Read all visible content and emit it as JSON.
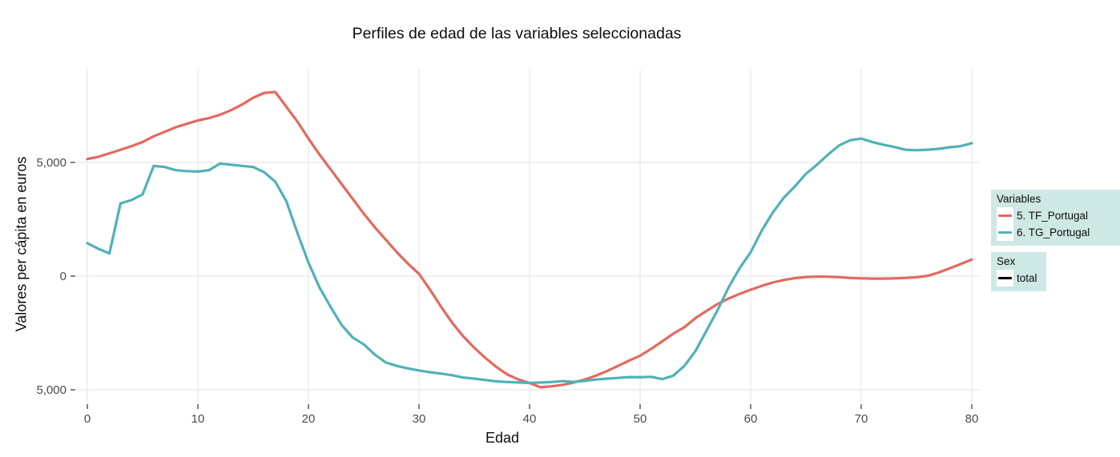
{
  "chart_data": {
    "type": "line",
    "title": "Perfiles de edad de las variables seleccionadas",
    "xlabel": "Edad",
    "ylabel": "Valores per cápita en euros",
    "xlim": [
      0,
      80
    ],
    "ylim": [
      -5560,
      9050
    ],
    "grid": true,
    "legend_position": "right",
    "x_ticks": [
      0,
      10,
      20,
      30,
      40,
      50,
      60,
      70,
      80
    ],
    "y_ticks": [
      {
        "value": 5000,
        "label": "5,000"
      },
      {
        "value": 0,
        "label": "0"
      },
      {
        "value": -5000,
        "label": "5,000"
      }
    ],
    "x": [
      0,
      1,
      2,
      3,
      4,
      5,
      6,
      7,
      8,
      9,
      10,
      11,
      12,
      13,
      14,
      15,
      16,
      17,
      18,
      19,
      20,
      21,
      22,
      23,
      24,
      25,
      26,
      27,
      28,
      29,
      30,
      31,
      32,
      33,
      34,
      35,
      36,
      37,
      38,
      39,
      40,
      41,
      42,
      43,
      44,
      45,
      46,
      47,
      48,
      49,
      50,
      51,
      52,
      53,
      54,
      55,
      56,
      57,
      58,
      59,
      60,
      61,
      62,
      63,
      64,
      65,
      66,
      67,
      68,
      69,
      70,
      71,
      72,
      73,
      74,
      75,
      76,
      77,
      78,
      79,
      80
    ],
    "series": [
      {
        "name": "5. TF_Portugal",
        "color": "#e5685e",
        "values": [
          5150,
          5250,
          5400,
          5560,
          5720,
          5900,
          6150,
          6350,
          6550,
          6700,
          6850,
          6950,
          7100,
          7300,
          7550,
          7850,
          8060,
          8100,
          7450,
          6800,
          6050,
          5350,
          4700,
          4050,
          3400,
          2750,
          2150,
          1600,
          1050,
          550,
          100,
          -600,
          -1350,
          -2050,
          -2650,
          -3150,
          -3600,
          -4000,
          -4330,
          -4550,
          -4700,
          -4890,
          -4850,
          -4780,
          -4680,
          -4550,
          -4380,
          -4180,
          -3950,
          -3720,
          -3500,
          -3200,
          -2870,
          -2530,
          -2250,
          -1850,
          -1530,
          -1230,
          -985,
          -780,
          -600,
          -430,
          -280,
          -170,
          -90,
          -40,
          -20,
          -25,
          -45,
          -80,
          -100,
          -110,
          -110,
          -100,
          -80,
          -50,
          10,
          160,
          340,
          530,
          730
        ]
      },
      {
        "name": "6. TG_Portugal",
        "color": "#4fb2b8",
        "values": [
          1450,
          1200,
          1000,
          3200,
          3350,
          3600,
          4850,
          4800,
          4660,
          4620,
          4600,
          4660,
          4950,
          4900,
          4850,
          4800,
          4570,
          4150,
          3300,
          1900,
          600,
          -500,
          -1350,
          -2150,
          -2700,
          -3000,
          -3450,
          -3800,
          -3950,
          -4060,
          -4150,
          -4230,
          -4290,
          -4360,
          -4460,
          -4510,
          -4570,
          -4630,
          -4660,
          -4680,
          -4700,
          -4680,
          -4660,
          -4620,
          -4650,
          -4610,
          -4550,
          -4510,
          -4480,
          -4440,
          -4450,
          -4430,
          -4530,
          -4380,
          -3950,
          -3300,
          -2400,
          -1500,
          -500,
          350,
          1050,
          2000,
          2800,
          3450,
          3950,
          4500,
          4900,
          5350,
          5750,
          5980,
          6050,
          5900,
          5780,
          5680,
          5560,
          5540,
          5560,
          5600,
          5670,
          5720,
          5850
        ]
      }
    ]
  },
  "legends": {
    "background": "#cee8e5",
    "variables": {
      "title": "Variables"
    },
    "sex": {
      "title": "Sex",
      "items": [
        {
          "label": "total",
          "color": "#000000"
        }
      ]
    }
  },
  "style": {
    "gridline_color": "#ebebeb",
    "tick_color": "#4d4d4d",
    "tick_label_color": "#4a4a4a"
  }
}
